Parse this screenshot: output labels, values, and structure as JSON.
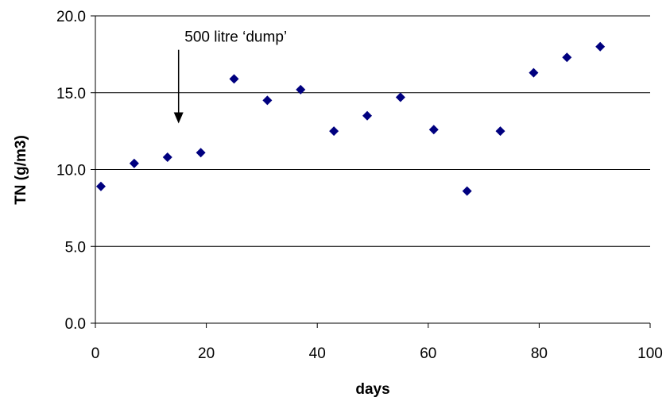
{
  "chart_data": {
    "type": "scatter",
    "title": "",
    "xlabel": "days",
    "ylabel": "TN (g/m3)",
    "xlim": [
      0,
      100
    ],
    "ylim": [
      0,
      20
    ],
    "xticks": [
      0,
      20,
      40,
      60,
      80,
      100
    ],
    "yticks": [
      0,
      5,
      10,
      15,
      20
    ],
    "xtick_labels": [
      "0",
      "20",
      "40",
      "60",
      "80",
      "100"
    ],
    "ytick_labels": [
      "0.0",
      "5.0",
      "10.0",
      "15.0",
      "20.0"
    ],
    "grid": "horizontal",
    "legend": "none",
    "marker": "diamond",
    "marker_color": "#00007f",
    "series": [
      {
        "x": [
          1,
          7,
          13,
          19,
          25,
          31,
          37,
          43,
          49,
          55,
          61,
          67,
          73,
          79,
          85,
          91
        ],
        "y": [
          8.9,
          10.4,
          10.8,
          11.1,
          15.9,
          14.5,
          15.2,
          12.5,
          13.5,
          14.7,
          12.6,
          8.6,
          12.5,
          16.3,
          17.3,
          18.0
        ]
      }
    ],
    "annotations": [
      {
        "text": "500 litre ‘dump’",
        "arrow_x": 15,
        "arrow_y_start": 18.0,
        "arrow_y_end": 13.0
      }
    ]
  }
}
